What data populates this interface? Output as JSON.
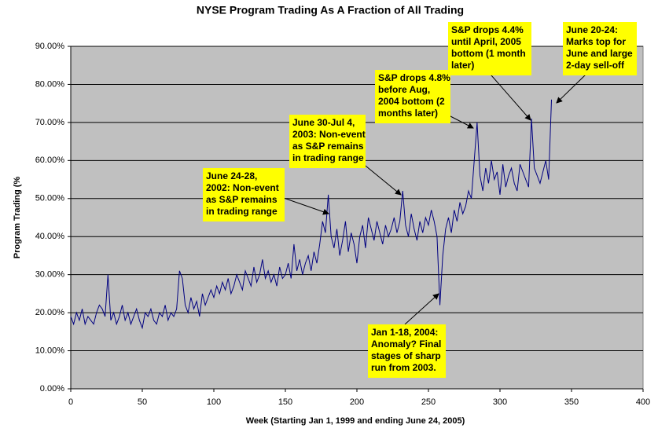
{
  "chart_data": {
    "type": "line",
    "title": "NYSE Program Trading As A Fraction of All Trading",
    "x_label": "Week (Starting Jan 1, 1999 and ending June 24, 2005)",
    "y_label": "Program Trading (%",
    "xlim": [
      0,
      400
    ],
    "xticks": [
      0,
      50,
      100,
      150,
      200,
      250,
      300,
      350,
      400
    ],
    "ylim": [
      0,
      90
    ],
    "yticks": [
      {
        "value": 0,
        "label": "0.00%"
      },
      {
        "value": 10,
        "label": "10.00%"
      },
      {
        "value": 20,
        "label": "20.00%"
      },
      {
        "value": 30,
        "label": "30.00%"
      },
      {
        "value": 40,
        "label": "40.00%"
      },
      {
        "value": 50,
        "label": "50.00%"
      },
      {
        "value": 60,
        "label": "60.00%"
      },
      {
        "value": 70,
        "label": "70.00%"
      },
      {
        "value": 80,
        "label": "80.00%"
      },
      {
        "value": 90,
        "label": "90.00%"
      }
    ],
    "grid": true,
    "x": [
      0,
      2,
      4,
      6,
      8,
      10,
      12,
      14,
      16,
      18,
      20,
      22,
      24,
      26,
      28,
      30,
      32,
      34,
      36,
      38,
      40,
      42,
      44,
      46,
      48,
      50,
      52,
      54,
      56,
      58,
      60,
      62,
      64,
      66,
      68,
      70,
      72,
      74,
      76,
      78,
      80,
      82,
      84,
      86,
      88,
      90,
      92,
      94,
      96,
      98,
      100,
      102,
      104,
      106,
      108,
      110,
      112,
      114,
      116,
      118,
      120,
      122,
      124,
      126,
      128,
      130,
      132,
      134,
      136,
      138,
      140,
      142,
      144,
      146,
      148,
      150,
      152,
      154,
      156,
      158,
      160,
      162,
      164,
      166,
      168,
      170,
      172,
      174,
      176,
      178,
      180,
      182,
      184,
      186,
      188,
      190,
      192,
      194,
      196,
      198,
      200,
      202,
      204,
      206,
      208,
      210,
      212,
      214,
      216,
      218,
      220,
      222,
      224,
      226,
      228,
      230,
      232,
      234,
      236,
      238,
      240,
      242,
      244,
      246,
      248,
      250,
      252,
      254,
      256,
      258,
      260,
      262,
      264,
      266,
      268,
      270,
      272,
      274,
      276,
      278,
      280,
      282,
      284,
      286,
      288,
      290,
      292,
      294,
      296,
      298,
      300,
      302,
      304,
      306,
      308,
      310,
      312,
      314,
      316,
      318,
      320,
      322,
      324,
      326,
      328,
      330,
      332,
      334,
      336
    ],
    "series": [
      {
        "color": "#000080",
        "values": [
          19,
          17,
          20,
          18,
          21,
          17,
          19,
          18,
          17,
          20,
          22,
          21,
          19,
          30,
          18,
          20,
          17,
          19,
          22,
          18,
          20,
          17,
          19,
          21,
          18,
          16,
          20,
          19,
          21,
          18,
          17,
          20,
          19,
          22,
          18,
          20,
          19,
          21,
          31,
          29,
          22,
          20,
          24,
          21,
          23,
          19,
          25,
          22,
          24,
          26,
          24,
          27,
          25,
          28,
          26,
          29,
          25,
          27,
          30,
          28,
          26,
          31,
          29,
          27,
          32,
          28,
          30,
          34,
          29,
          31,
          28,
          30,
          27,
          32,
          29,
          30,
          33,
          29,
          38,
          31,
          34,
          30,
          33,
          35,
          31,
          36,
          33,
          38,
          44,
          41,
          51,
          40,
          37,
          42,
          35,
          39,
          44,
          36,
          41,
          38,
          33,
          40,
          43,
          37,
          45,
          42,
          39,
          44,
          41,
          38,
          43,
          40,
          42,
          45,
          41,
          44,
          52,
          43,
          40,
          46,
          42,
          39,
          44,
          41,
          45,
          43,
          47,
          44,
          40,
          22,
          35,
          42,
          45,
          41,
          47,
          44,
          49,
          46,
          48,
          52,
          50,
          60,
          70,
          56,
          52,
          58,
          54,
          60,
          55,
          57,
          51,
          59,
          53,
          56,
          58,
          54,
          52,
          59,
          57,
          55,
          53,
          71,
          58,
          56,
          54,
          57,
          60,
          55,
          76
        ]
      }
    ],
    "annotations": [
      [
        "June 24-28,",
        "2002: Non-event",
        "as S&P remains",
        "in trading range"
      ],
      [
        "June 30-Jul 4,",
        "2003: Non-event",
        "as S&P remains",
        "in trading range"
      ],
      [
        "S&P drops 4.8%",
        "before Aug,",
        "2004 bottom (2",
        "months later)"
      ],
      [
        "S&P drops 4.4%",
        "until April, 2005",
        "bottom (1 month",
        "later)"
      ],
      [
        "June 20-24:",
        "Marks top for",
        "June and large",
        "2-day sell-off"
      ],
      [
        "Jan 1-18, 2004:",
        "Anomaly? Final",
        "stages of sharp",
        "run from 2003."
      ]
    ]
  }
}
